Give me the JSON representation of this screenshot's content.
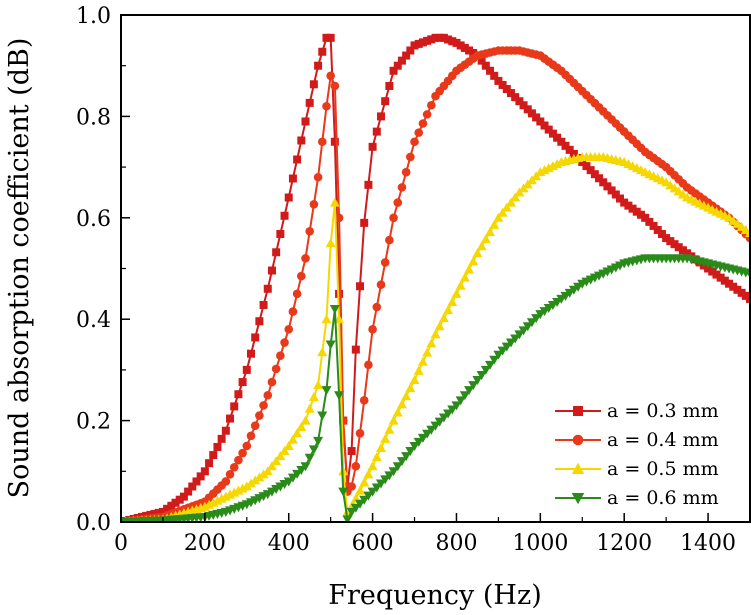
{
  "chart_data": {
    "type": "line",
    "title": "",
    "xlabel": "Frequency (Hz)",
    "ylabel": "Sound absorption coefficient (dB)",
    "xlim": [
      0,
      1500
    ],
    "ylim": [
      0,
      1.0
    ],
    "xticks": [
      0,
      200,
      400,
      600,
      800,
      1000,
      1200,
      1400
    ],
    "yticks": [
      0.0,
      0.2,
      0.4,
      0.6,
      0.8,
      1.0
    ],
    "xtick_labels": [
      "0",
      "200",
      "400",
      "600",
      "800",
      "1000",
      "1200",
      "1400"
    ],
    "ytick_labels": [
      "0.0",
      "0.2",
      "0.4",
      "0.6",
      "0.8",
      "1.0"
    ],
    "grid": false,
    "legend_position": "bottom-right",
    "series": [
      {
        "name": "a = 0.3 mm",
        "color": "#d11b1b",
        "marker": "square",
        "x": [
          0,
          50,
          100,
          150,
          200,
          250,
          300,
          350,
          400,
          440,
          470,
          490,
          500,
          510,
          520,
          530,
          540,
          550,
          560,
          580,
          600,
          650,
          700,
          750,
          770,
          800,
          850,
          900,
          950,
          1000,
          1050,
          1100,
          1150,
          1200,
          1250,
          1300,
          1350,
          1400,
          1450,
          1500
        ],
        "y": [
          0,
          0.01,
          0.02,
          0.05,
          0.1,
          0.18,
          0.3,
          0.46,
          0.64,
          0.79,
          0.9,
          0.955,
          0.955,
          0.75,
          0.45,
          0.2,
          0.07,
          0.14,
          0.34,
          0.59,
          0.74,
          0.89,
          0.94,
          0.955,
          0.955,
          0.945,
          0.92,
          0.87,
          0.83,
          0.79,
          0.75,
          0.71,
          0.67,
          0.63,
          0.6,
          0.56,
          0.53,
          0.5,
          0.47,
          0.44
        ]
      },
      {
        "name": "a = 0.4 mm",
        "color": "#e8391a",
        "marker": "circle",
        "x": [
          0,
          100,
          200,
          250,
          300,
          350,
          400,
          440,
          470,
          490,
          500,
          510,
          520,
          530,
          540,
          550,
          560,
          580,
          600,
          650,
          700,
          750,
          800,
          850,
          900,
          950,
          1000,
          1050,
          1100,
          1150,
          1200,
          1250,
          1300,
          1350,
          1400,
          1450,
          1500
        ],
        "y": [
          0,
          0.01,
          0.04,
          0.08,
          0.15,
          0.25,
          0.38,
          0.52,
          0.68,
          0.82,
          0.88,
          0.86,
          0.6,
          0.2,
          0.06,
          0.07,
          0.11,
          0.24,
          0.38,
          0.6,
          0.75,
          0.84,
          0.89,
          0.92,
          0.93,
          0.93,
          0.92,
          0.89,
          0.85,
          0.81,
          0.77,
          0.73,
          0.7,
          0.66,
          0.63,
          0.6,
          0.56
        ]
      },
      {
        "name": "a = 0.5 mm",
        "color": "#f5d800",
        "marker": "triangle-up",
        "x": [
          0,
          100,
          200,
          250,
          300,
          350,
          400,
          440,
          470,
          490,
          500,
          510,
          520,
          530,
          540,
          550,
          600,
          650,
          700,
          750,
          800,
          850,
          900,
          950,
          1000,
          1050,
          1100,
          1150,
          1200,
          1250,
          1300,
          1350,
          1400,
          1450,
          1500
        ],
        "y": [
          0,
          0.005,
          0.03,
          0.05,
          0.07,
          0.1,
          0.15,
          0.2,
          0.27,
          0.4,
          0.55,
          0.63,
          0.4,
          0.1,
          0.02,
          0.03,
          0.11,
          0.2,
          0.28,
          0.37,
          0.45,
          0.53,
          0.6,
          0.65,
          0.69,
          0.71,
          0.72,
          0.72,
          0.71,
          0.69,
          0.67,
          0.64,
          0.62,
          0.6,
          0.57
        ]
      },
      {
        "name": "a = 0.6 mm",
        "color": "#2a8a1a",
        "marker": "triangle-down",
        "x": [
          0,
          100,
          200,
          250,
          300,
          350,
          400,
          440,
          470,
          490,
          500,
          510,
          520,
          530,
          540,
          550,
          600,
          650,
          700,
          750,
          800,
          850,
          900,
          950,
          1000,
          1050,
          1100,
          1150,
          1200,
          1250,
          1300,
          1350,
          1400,
          1450,
          1500
        ],
        "y": [
          0,
          0.003,
          0.01,
          0.02,
          0.035,
          0.055,
          0.08,
          0.11,
          0.16,
          0.26,
          0.35,
          0.42,
          0.25,
          0.06,
          0.005,
          0.02,
          0.06,
          0.1,
          0.15,
          0.19,
          0.23,
          0.28,
          0.33,
          0.37,
          0.41,
          0.44,
          0.47,
          0.49,
          0.51,
          0.52,
          0.52,
          0.52,
          0.51,
          0.5,
          0.49
        ]
      }
    ]
  }
}
